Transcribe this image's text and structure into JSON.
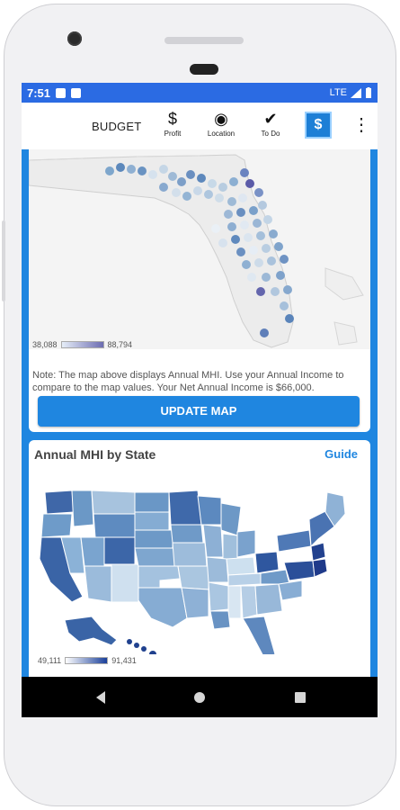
{
  "status": {
    "time": "7:51",
    "network": "LTE"
  },
  "appbar": {
    "title": "BUDGET",
    "tools": [
      {
        "glyph": "$",
        "label": "Profit"
      },
      {
        "glyph": "◉",
        "label": "Location"
      },
      {
        "glyph": "✔",
        "label": "To Do"
      }
    ],
    "logo_glyph": "$",
    "more_glyph": "⋮"
  },
  "florida": {
    "legend_min": "38,088",
    "legend_max": "88,794",
    "note": "Note: The map above displays Annual MHI. Use your Annual Income to compare to the map values. Your Net Annual Income is $66,000.",
    "button_label": "UPDATE MAP"
  },
  "states": {
    "title": "Annual MHI by State",
    "guide_label": "Guide",
    "legend_min": "49,111",
    "legend_max": "91,431"
  },
  "colors": {
    "status_bar": "#2b6be3",
    "accent": "#1f86e0"
  },
  "icons": {
    "back": "back-icon",
    "home": "home-icon",
    "recents": "recents-icon"
  }
}
